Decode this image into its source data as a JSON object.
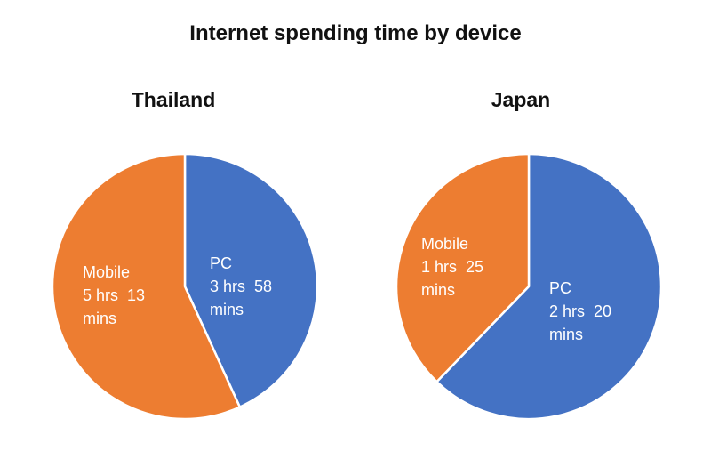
{
  "main_title": "Internet spending time by device",
  "colors": {
    "pc": "#4472c4",
    "mobile": "#ed7d31",
    "divider": "#ffffff",
    "frame": "#5b6f8c"
  },
  "chart_data": [
    {
      "type": "pie",
      "title": "Thailand",
      "slices": [
        {
          "category": "PC",
          "value_minutes": 238,
          "label_lines": [
            "PC",
            "3 hrs  58",
            "mins"
          ]
        },
        {
          "category": "Mobile",
          "value_minutes": 313,
          "label_lines": [
            "Mobile",
            "5 hrs  13",
            "mins"
          ]
        }
      ]
    },
    {
      "type": "pie",
      "title": "Japan",
      "slices": [
        {
          "category": "PC",
          "value_minutes": 140,
          "label_lines": [
            "PC",
            "2 hrs  20",
            "mins"
          ]
        },
        {
          "category": "Mobile",
          "value_minutes": 85,
          "label_lines": [
            "Mobile",
            "1 hrs  25",
            "mins"
          ]
        }
      ]
    }
  ]
}
